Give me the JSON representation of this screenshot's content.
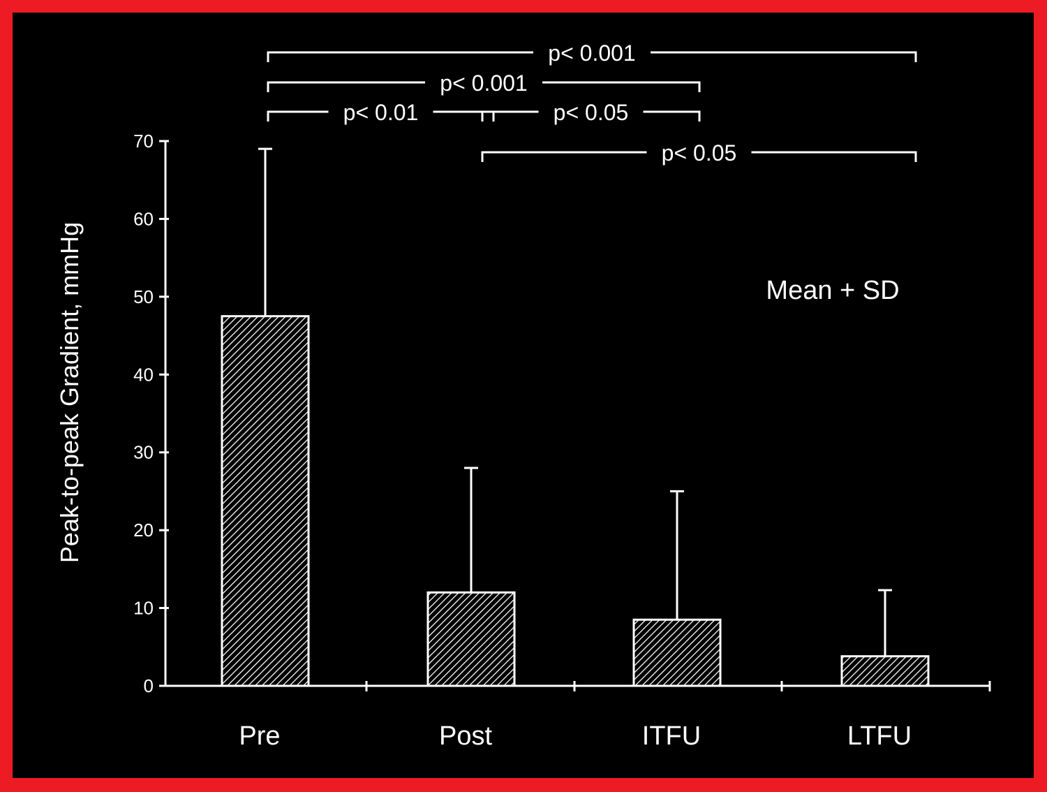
{
  "chart_data": {
    "type": "bar",
    "categories": [
      "Pre",
      "Post",
      "ITFU",
      "LTFU"
    ],
    "values": [
      47.5,
      12,
      8.5,
      3.8
    ],
    "error_sd": [
      21.5,
      16,
      16.5,
      8.5
    ],
    "ylabel": "Peak-to-peak Gradient, mmHg",
    "xlabel": "",
    "ylim": [
      0,
      70
    ],
    "yticks": [
      0,
      10,
      20,
      30,
      40,
      50,
      60,
      70
    ],
    "grid": false,
    "annotation": "Mean + SD",
    "significance": [
      {
        "from": 0,
        "to": 3,
        "label": "p< 0.001"
      },
      {
        "from": 0,
        "to": 2,
        "label": "p< 0.001"
      },
      {
        "from": 0,
        "to": 1,
        "label": "p< 0.01"
      },
      {
        "from": 1,
        "to": 2,
        "label": "p< 0.05"
      },
      {
        "from": 1,
        "to": 3,
        "label": "p< 0.05"
      }
    ],
    "colors": {
      "background": "#000000",
      "frame": "#ed1c24",
      "marks": "#ffffff"
    }
  }
}
